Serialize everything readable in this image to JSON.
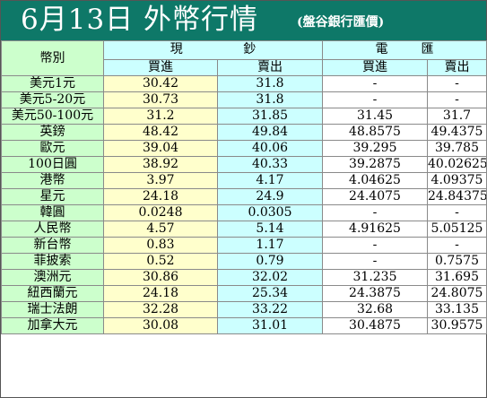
{
  "header": {
    "title": "6月13日 外幣行情",
    "subtitle": "(盤谷銀行匯價)"
  },
  "table": {
    "currency_header": "幣別",
    "cash_group": [
      "現",
      "鈔"
    ],
    "wire_group": [
      "電",
      "匯"
    ],
    "buy_label": "買進",
    "sell_label": "賣出",
    "rows": [
      {
        "name": "美元1元",
        "cash_buy": "30.42",
        "cash_sell": "31.8",
        "wire_buy": "-",
        "wire_sell": "-"
      },
      {
        "name": "美元5-20元",
        "cash_buy": "30.73",
        "cash_sell": "31.8",
        "wire_buy": "-",
        "wire_sell": "-"
      },
      {
        "name": "美元50-100元",
        "cash_buy": "31.2",
        "cash_sell": "31.85",
        "wire_buy": "31.45",
        "wire_sell": "31.7"
      },
      {
        "name": "英鎊",
        "cash_buy": "48.42",
        "cash_sell": "49.84",
        "wire_buy": "48.8575",
        "wire_sell": "49.4375"
      },
      {
        "name": "歐元",
        "cash_buy": "39.04",
        "cash_sell": "40.06",
        "wire_buy": "39.295",
        "wire_sell": "39.785"
      },
      {
        "name": "100日圓",
        "cash_buy": "38.92",
        "cash_sell": "40.33",
        "wire_buy": "39.2875",
        "wire_sell": "40.02625"
      },
      {
        "name": "港幣",
        "cash_buy": "3.97",
        "cash_sell": "4.17",
        "wire_buy": "4.04625",
        "wire_sell": "4.09375"
      },
      {
        "name": "星元",
        "cash_buy": "24.18",
        "cash_sell": "24.9",
        "wire_buy": "24.4075",
        "wire_sell": "24.84375"
      },
      {
        "name": "韓圓",
        "cash_buy": "0.0248",
        "cash_sell": "0.0305",
        "wire_buy": "-",
        "wire_sell": "-"
      },
      {
        "name": "人民幣",
        "cash_buy": "4.57",
        "cash_sell": "5.14",
        "wire_buy": "4.91625",
        "wire_sell": "5.05125"
      },
      {
        "name": "新台幣",
        "cash_buy": "0.83",
        "cash_sell": "1.17",
        "wire_buy": "-",
        "wire_sell": "-"
      },
      {
        "name": "菲披索",
        "cash_buy": "0.52",
        "cash_sell": "0.79",
        "wire_buy": "-",
        "wire_sell": "0.7575"
      },
      {
        "name": "澳洲元",
        "cash_buy": "30.86",
        "cash_sell": "32.02",
        "wire_buy": "31.235",
        "wire_sell": "31.695"
      },
      {
        "name": "紐西蘭元",
        "cash_buy": "24.18",
        "cash_sell": "25.34",
        "wire_buy": "24.3875",
        "wire_sell": "24.8075"
      },
      {
        "name": "瑞士法朗",
        "cash_buy": "32.28",
        "cash_sell": "33.22",
        "wire_buy": "32.68",
        "wire_sell": "33.135"
      },
      {
        "name": "加拿大元",
        "cash_buy": "30.08",
        "cash_sell": "31.01",
        "wire_buy": "30.4875",
        "wire_sell": "30.9575"
      }
    ]
  },
  "colors": {
    "title_bar": "#0e7868",
    "name_column": "#ccffcc",
    "cash_buy_column": "#ffffcc",
    "cash_sell_column": "#ccffff",
    "wire_columns": "#ffffff"
  }
}
